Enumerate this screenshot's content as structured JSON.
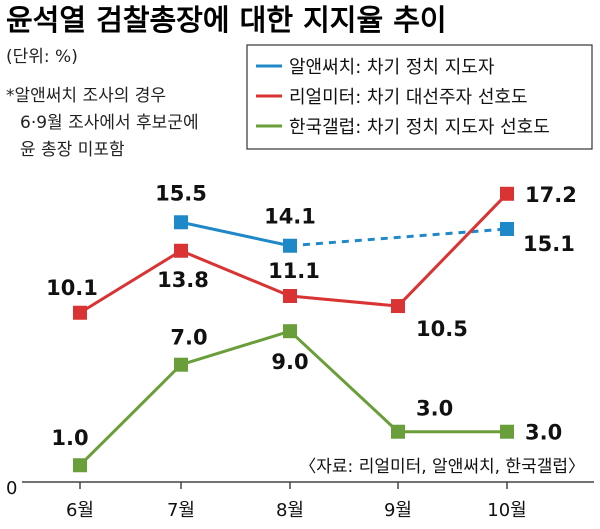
{
  "title": "윤석열 검찰총장에 대한 지지율 추이",
  "notes": [
    "(단위: %)",
    "*알앤써치 조사의 경우",
    "6·9월 조사에서 후보군에",
    "윤 총장 미포함"
  ],
  "source": "〈자료: 리얼미터, 알앤써치, 한국갤럽〉",
  "chart_data": {
    "type": "line",
    "categories": [
      "6월",
      "7월",
      "8월",
      "9월",
      "10월"
    ],
    "ylim": [
      0,
      18.5
    ],
    "y_zero_label": "0",
    "legend_position": "top-right",
    "series": [
      {
        "name": "알앤써치: 차기 정치 지도자",
        "color": "#1e88c8",
        "values": [
          null,
          15.5,
          14.1,
          null,
          15.1
        ],
        "dashed_gap": true,
        "labels": [
          "",
          "15.5",
          "14.1",
          "",
          "15.1"
        ]
      },
      {
        "name": "리얼미터: 차기 대선주자 선호도",
        "color": "#d93333",
        "values": [
          10.1,
          13.8,
          11.1,
          10.5,
          17.2
        ],
        "dashed_gap": false,
        "labels": [
          "10.1",
          "13.8",
          "11.1",
          "10.5",
          "17.2"
        ]
      },
      {
        "name": "한국갤럽: 차기 정치 지도자 선호도",
        "color": "#6a9e3a",
        "values": [
          1.0,
          7.0,
          9.0,
          3.0,
          3.0
        ],
        "dashed_gap": false,
        "labels": [
          "1.0",
          "7.0",
          "9.0",
          "3.0",
          "3.0"
        ]
      }
    ]
  }
}
